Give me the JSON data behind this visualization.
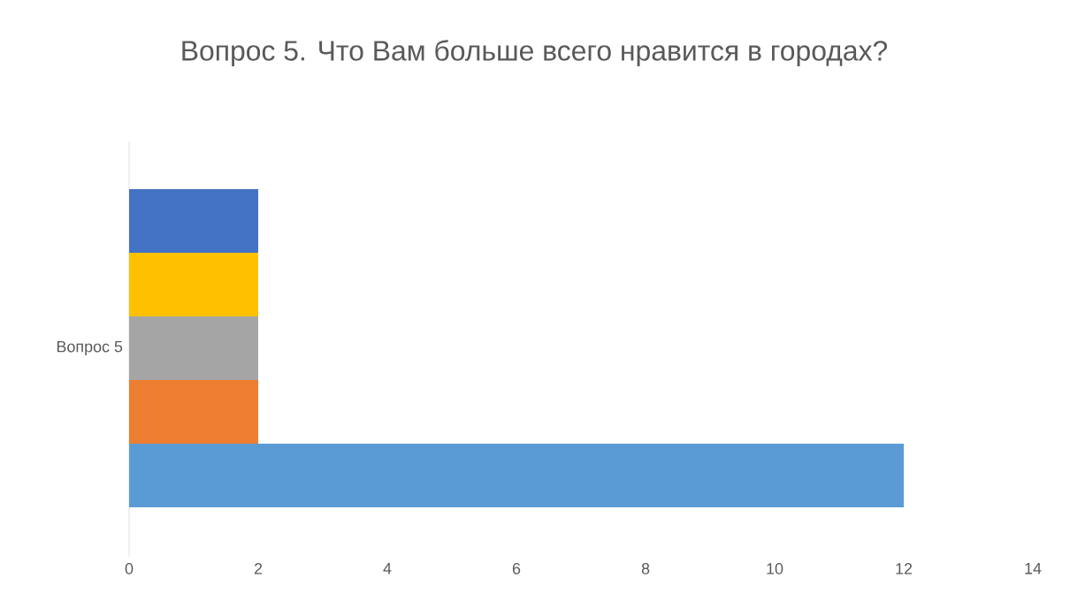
{
  "chart_data": {
    "type": "bar",
    "orientation": "horizontal",
    "title": "Вопрос 5. Что Вам больше всего нравится в городах?",
    "categories": [
      "Вопрос 5"
    ],
    "series": [
      {
        "color": "#4472c4",
        "values": [
          2
        ]
      },
      {
        "color": "#ffc000",
        "values": [
          2
        ]
      },
      {
        "color": "#a5a5a5",
        "values": [
          2
        ]
      },
      {
        "color": "#ed7d31",
        "values": [
          2
        ]
      },
      {
        "color": "#5b9bd5",
        "values": [
          12
        ]
      }
    ],
    "xlim": [
      0,
      14
    ],
    "xticks": [
      0,
      2,
      4,
      6,
      8,
      10,
      12,
      14
    ]
  }
}
